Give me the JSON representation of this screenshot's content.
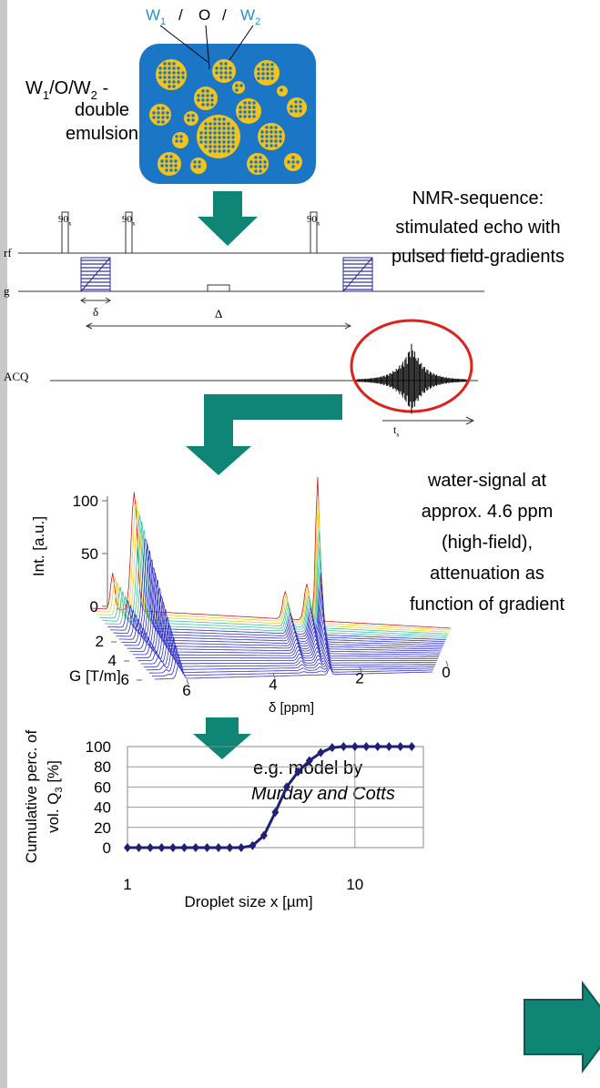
{
  "emulsion": {
    "top_labels": [
      {
        "text": "W",
        "sub": "1"
      },
      {
        "text": "O"
      },
      {
        "text": "W",
        "sub": "2"
      }
    ],
    "separator": "/",
    "side_label": {
      "formula": [
        {
          "text": "W",
          "sub": "1"
        },
        {
          "text": "/O/W",
          "sub": "2"
        },
        {
          "text": " -"
        }
      ],
      "lines": [
        "double",
        "emulsion"
      ]
    }
  },
  "nmr": {
    "title_lines": [
      "NMR-sequence:",
      "stimulated echo with",
      "pulsed field-gradients"
    ],
    "rows": [
      "rf",
      "g",
      "ACQ"
    ],
    "pulse_label": {
      "text": "90",
      "sub": "x"
    },
    "delta_small": "δ",
    "delta_big": "Δ",
    "time_label": {
      "text": "t",
      "sub": "s"
    }
  },
  "spectrum": {
    "ylabel": "Int. [a.u.]",
    "ylim": [
      0,
      100
    ],
    "yticks": [
      0,
      50,
      100
    ],
    "glabel": "G [T/m]",
    "glim": [
      2,
      6
    ],
    "gticks": [
      2,
      4,
      6
    ],
    "xlabel": "δ [ppm]",
    "xlim": [
      6,
      0
    ],
    "xticks": [
      6,
      4,
      2,
      0
    ],
    "description": [
      "water-signal at",
      "approx. 4.6 ppm",
      "(high-field),",
      "attenuation  as",
      "function of gradient"
    ]
  },
  "model": {
    "lines": [
      "e.g. model by",
      "Murday  and Cotts"
    ]
  },
  "chart_data": {
    "type": "line",
    "xlabel": "Droplet size x [µm]",
    "ylabel": {
      "line1": "Cumulative perc.  of",
      "line2": "vol. Q",
      "sub": "3",
      "line2_end": " [%]"
    },
    "x": [
      1,
      1.122,
      1.259,
      1.413,
      1.585,
      1.778,
      1.995,
      2.239,
      2.512,
      2.818,
      3.162,
      3.548,
      3.981,
      4.467,
      5.012,
      5.623,
      6.31,
      7.079,
      7.943,
      8.913,
      10,
      11.22,
      12.59,
      14.13,
      15.85,
      17.78
    ],
    "values": [
      0,
      0,
      0,
      0,
      0,
      0,
      0,
      0,
      0,
      0,
      0,
      2,
      12,
      35,
      60,
      75,
      86,
      94,
      99,
      100,
      100,
      100,
      100,
      100,
      100,
      100
    ],
    "color": "#1f1f7a",
    "xscale": "log",
    "xlim": [
      1,
      20
    ],
    "xticks": [
      1,
      10
    ],
    "ylim": [
      0,
      100
    ],
    "yticks": [
      0,
      20,
      40,
      60,
      80,
      100
    ],
    "grid": true
  }
}
